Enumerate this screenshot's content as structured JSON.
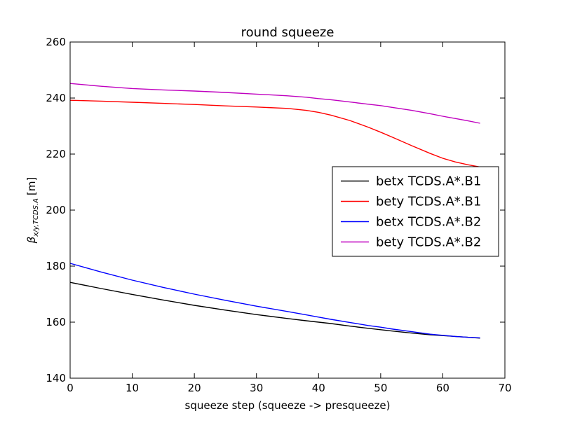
{
  "chart_data": {
    "type": "line",
    "title": "round squeeze",
    "xlabel": "squeeze step (squeeze -> presqueeze)",
    "ylabel": "β_{x/y,TCDS.A} [m]",
    "ylabel_main": "β",
    "ylabel_sub": "x/y,TCDS.A",
    "ylabel_unit": "[m]",
    "xlim": [
      0,
      70
    ],
    "ylim": [
      140,
      260
    ],
    "xticks": [
      0,
      10,
      20,
      30,
      40,
      50,
      60,
      70
    ],
    "yticks": [
      140,
      160,
      180,
      200,
      220,
      240,
      260
    ],
    "grid": false,
    "legend_position": "center-right",
    "x": [
      0,
      5,
      10,
      15,
      20,
      25,
      30,
      35,
      38,
      40,
      42,
      45,
      48,
      50,
      52,
      55,
      58,
      60,
      62,
      64,
      66
    ],
    "series": [
      {
        "name": "betx TCDS.A*.B1",
        "color": "#000000",
        "values": [
          174.2,
          172.0,
          169.9,
          167.9,
          166.0,
          164.3,
          162.7,
          161.3,
          160.5,
          160.0,
          159.5,
          158.6,
          157.8,
          157.3,
          156.8,
          156.1,
          155.5,
          155.2,
          154.9,
          154.6,
          154.3
        ]
      },
      {
        "name": "bety TCDS.A*.B1",
        "color": "#ff0000",
        "values": [
          239.2,
          238.9,
          238.5,
          238.1,
          237.7,
          237.2,
          236.8,
          236.3,
          235.6,
          234.9,
          233.9,
          232.0,
          229.6,
          227.8,
          225.9,
          223.0,
          220.2,
          218.5,
          217.2,
          216.2,
          215.4
        ]
      },
      {
        "name": "betx TCDS.A*.B2",
        "color": "#0000ff",
        "values": [
          181.0,
          177.9,
          175.0,
          172.4,
          170.0,
          167.8,
          165.7,
          163.8,
          162.6,
          161.8,
          161.0,
          159.9,
          158.8,
          158.2,
          157.5,
          156.6,
          155.7,
          155.3,
          154.9,
          154.6,
          154.4
        ]
      },
      {
        "name": "bety TCDS.A*.B2",
        "color": "#bf00bf",
        "values": [
          245.2,
          244.2,
          243.4,
          242.9,
          242.5,
          242.0,
          241.4,
          240.8,
          240.3,
          239.8,
          239.4,
          238.6,
          237.8,
          237.3,
          236.6,
          235.6,
          234.4,
          233.5,
          232.7,
          231.9,
          231.0
        ]
      }
    ]
  }
}
